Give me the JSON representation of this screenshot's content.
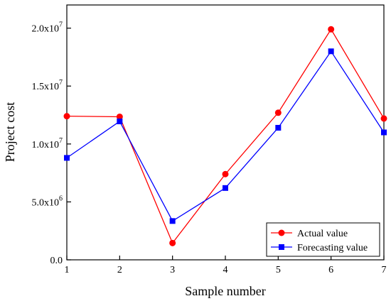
{
  "chart_data": {
    "type": "line",
    "x": [
      1,
      2,
      3,
      4,
      5,
      6,
      7
    ],
    "x_tick_labels": [
      "1",
      "2",
      "3",
      "4",
      "5",
      "6",
      "7"
    ],
    "series": [
      {
        "name": "Actual value",
        "color": "#ff0000",
        "marker": "circle",
        "values": [
          12400000,
          12350000,
          1450000,
          7400000,
          12700000,
          19900000,
          12200000
        ]
      },
      {
        "name": "Forecasting value",
        "color": "#0000ff",
        "marker": "square",
        "values": [
          8800000,
          11950000,
          3350000,
          6200000,
          11400000,
          18000000,
          11000000
        ]
      }
    ],
    "xlabel": "Sample number",
    "ylabel": "Project cost",
    "xlim": [
      1,
      7
    ],
    "ylim": [
      0,
      22000000
    ],
    "y_ticks": [
      {
        "value": 0,
        "mantissa": "0.0",
        "exponent": ""
      },
      {
        "value": 5000000,
        "mantissa": "5.0x10",
        "exponent": "6"
      },
      {
        "value": 10000000,
        "mantissa": "1.0x10",
        "exponent": "7"
      },
      {
        "value": 15000000,
        "mantissa": "1.5x10",
        "exponent": "7"
      },
      {
        "value": 20000000,
        "mantissa": "2.0x10",
        "exponent": "7"
      }
    ],
    "grid": false,
    "legend_position": "bottom-right"
  }
}
